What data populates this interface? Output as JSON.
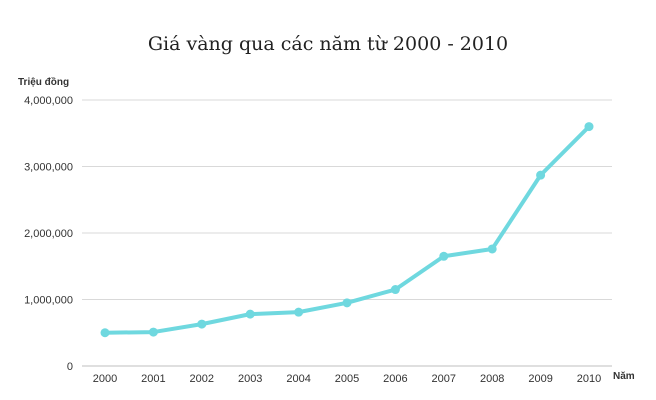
{
  "chart_data": {
    "type": "line",
    "title": "Giá vàng qua các năm từ 2000 - 2010",
    "xlabel": "Năm",
    "ylabel": "Triệu đồng",
    "categories": [
      "2000",
      "2001",
      "2002",
      "2003",
      "2004",
      "2005",
      "2006",
      "2007",
      "2008",
      "2009",
      "2010"
    ],
    "series": [
      {
        "values": [
          500000,
          510000,
          630000,
          780000,
          810000,
          950000,
          1150000,
          1650000,
          1760000,
          2870000,
          3600000
        ]
      }
    ],
    "ylim": [
      0,
      4000000
    ],
    "yticks": [
      0,
      1000000,
      2000000,
      3000000,
      4000000
    ],
    "ytick_labels": [
      "0",
      "1,000,000",
      "2,000,000",
      "3,000,000",
      "4,000,000"
    ],
    "grid": true,
    "line_color": "#6fd8df"
  }
}
